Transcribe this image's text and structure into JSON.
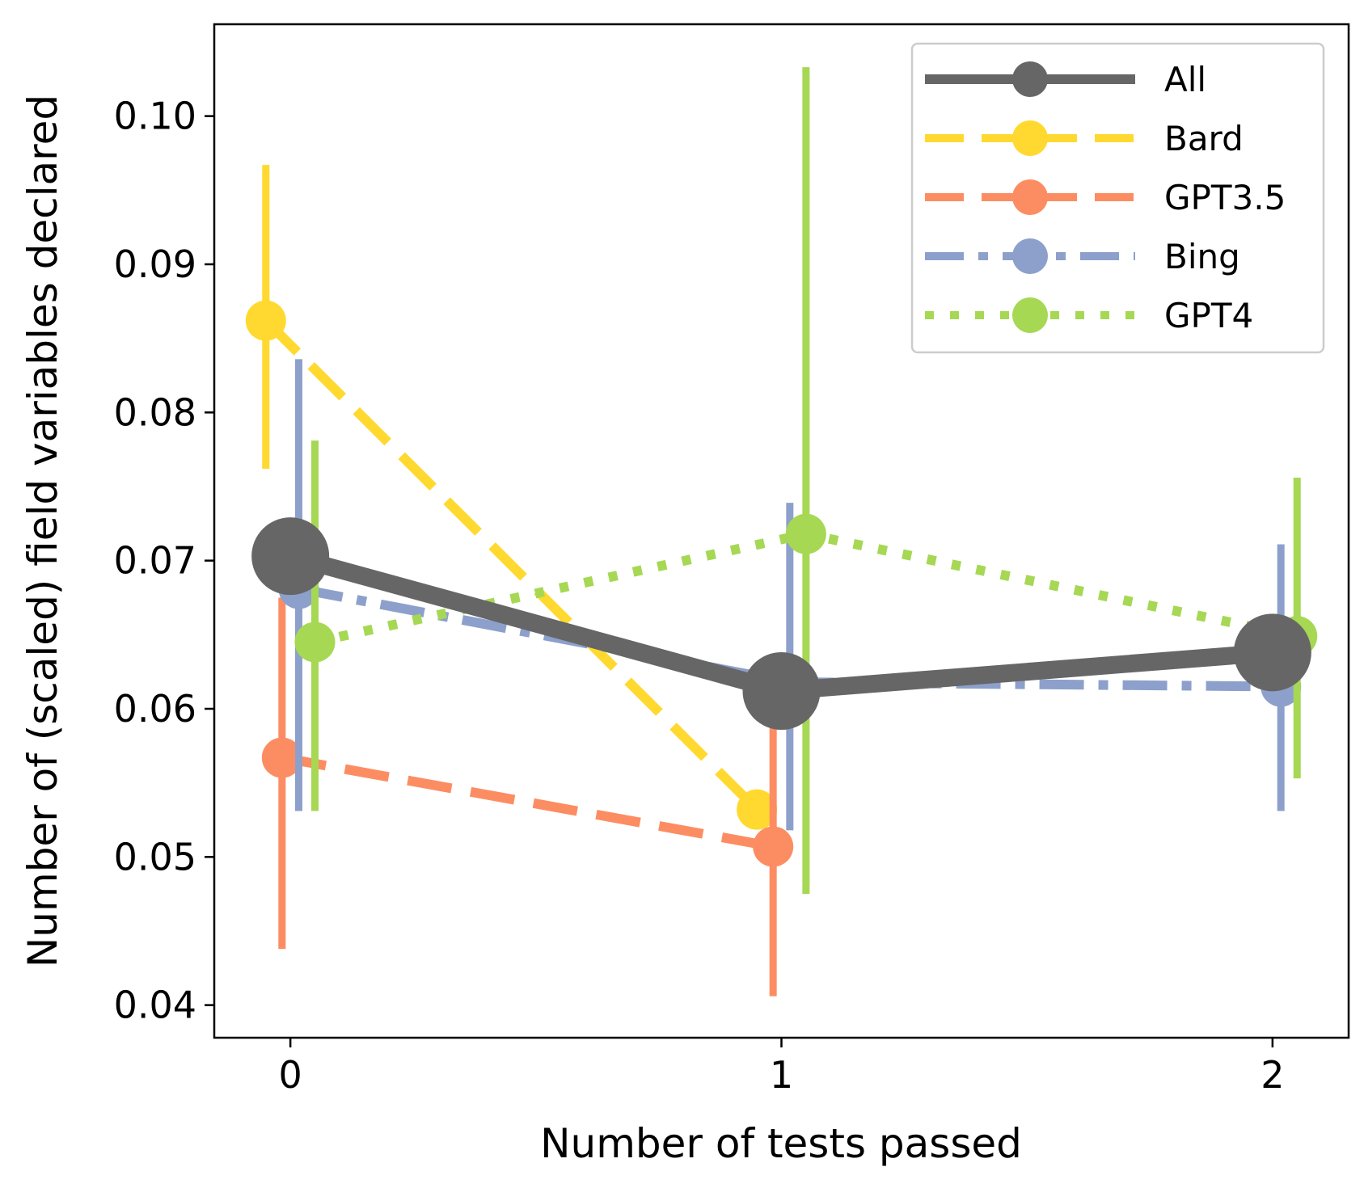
{
  "chart_data": {
    "type": "line",
    "xlabel": "Number of tests passed",
    "ylabel": "Number of (scaled) field variables declared",
    "xlim": [
      -0.155,
      2.155
    ],
    "ylim": [
      0.0378,
      0.1062
    ],
    "x_ticks": [
      0,
      1,
      2
    ],
    "x_tick_labels": [
      "0",
      "1",
      "2"
    ],
    "y_ticks": [
      0.04,
      0.05,
      0.06,
      0.07,
      0.08,
      0.09,
      0.1
    ],
    "y_tick_labels": [
      "0.04",
      "0.05",
      "0.06",
      "0.07",
      "0.08",
      "0.09",
      "0.10"
    ],
    "grid": false,
    "legend_position": "top-right",
    "series": [
      {
        "name": "All",
        "color": "#666666",
        "dash": "solid",
        "x": [
          0,
          1,
          2
        ],
        "y": [
          0.0703,
          0.0612,
          0.0638
        ]
      },
      {
        "name": "Bard",
        "color": "#ffd92f",
        "dash": "dashed",
        "x": [
          0,
          1
        ],
        "y": [
          0.0862,
          0.0532
        ],
        "err_low": [
          0.0762,
          null
        ],
        "err_high": [
          0.0967,
          null
        ]
      },
      {
        "name": "GPT3.5",
        "color": "#fc8d62",
        "dash": "dashed",
        "x": [
          0,
          1
        ],
        "y": [
          0.0567,
          0.0507
        ],
        "err_low": [
          0.0438,
          0.0406
        ],
        "err_high": [
          0.0675,
          0.0598
        ]
      },
      {
        "name": "Bing",
        "color": "#8da0cb",
        "dash": "dashdot",
        "x": [
          0,
          1,
          2
        ],
        "y": [
          0.0681,
          0.0618,
          0.0615
        ],
        "err_low": [
          0.0531,
          0.0518,
          0.0531
        ],
        "err_high": [
          0.0836,
          0.0739,
          0.0711
        ]
      },
      {
        "name": "GPT4",
        "color": "#a6d854",
        "dash": "dotted",
        "x": [
          0,
          1,
          2
        ],
        "y": [
          0.0645,
          0.0718,
          0.0649
        ],
        "err_low": [
          0.0531,
          0.0475,
          0.0553
        ],
        "err_high": [
          0.0781,
          0.1033,
          0.0756
        ]
      }
    ]
  }
}
